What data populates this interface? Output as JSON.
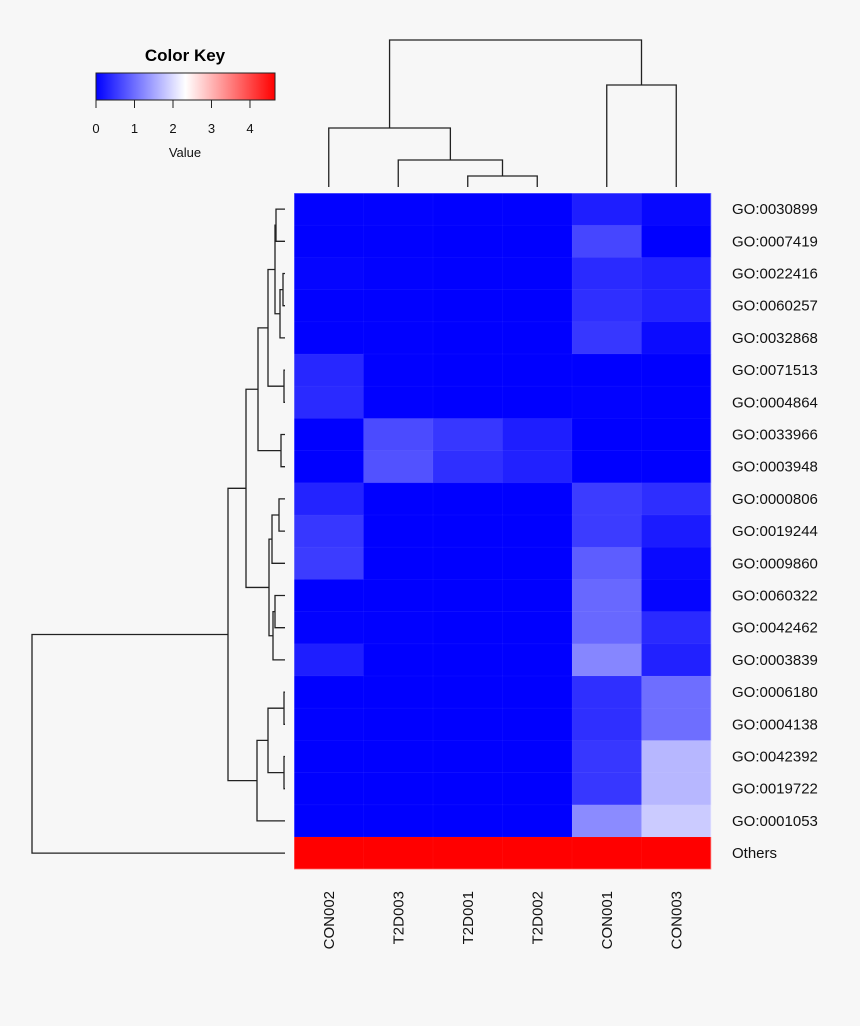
{
  "chart_data": {
    "type": "heatmap",
    "columns": [
      "CON002",
      "T2D003",
      "T2D001",
      "T2D002",
      "CON001",
      "CON003"
    ],
    "rows": [
      "GO:0030899",
      "GO:0007419",
      "GO:0022416",
      "GO:0060257",
      "GO:0032868",
      "GO:0071513",
      "GO:0004864",
      "GO:0033966",
      "GO:0003948",
      "GO:0000806",
      "GO:0019244",
      "GO:0009860",
      "GO:0060322",
      "GO:0042462",
      "GO:0003839",
      "GO:0006180",
      "GO:0004138",
      "GO:0042392",
      "GO:0019722",
      "GO:0001053",
      "Others"
    ],
    "values": [
      [
        0.02,
        0.02,
        0.01,
        0.01,
        0.27,
        0.06
      ],
      [
        0.01,
        0.01,
        0.0,
        0.0,
        0.64,
        0.0
      ],
      [
        0.05,
        0.02,
        0.01,
        0.01,
        0.38,
        0.3
      ],
      [
        0.01,
        0.01,
        0.0,
        0.0,
        0.43,
        0.32
      ],
      [
        0.01,
        0.01,
        0.0,
        0.0,
        0.5,
        0.1
      ],
      [
        0.36,
        0.01,
        0.0,
        0.0,
        0.0,
        0.0
      ],
      [
        0.38,
        0.01,
        0.0,
        0.0,
        0.02,
        0.01
      ],
      [
        0.0,
        0.68,
        0.5,
        0.27,
        0.0,
        0.0
      ],
      [
        0.0,
        0.75,
        0.43,
        0.3,
        0.0,
        0.0
      ],
      [
        0.32,
        0.0,
        0.0,
        0.0,
        0.55,
        0.42
      ],
      [
        0.5,
        0.0,
        0.0,
        0.0,
        0.55,
        0.25
      ],
      [
        0.55,
        0.0,
        0.0,
        0.0,
        0.85,
        0.08
      ],
      [
        0.0,
        0.0,
        0.0,
        0.0,
        0.95,
        0.05
      ],
      [
        0.02,
        0.01,
        0.0,
        0.0,
        0.95,
        0.38
      ],
      [
        0.27,
        0.0,
        0.0,
        0.0,
        1.22,
        0.3
      ],
      [
        0.0,
        0.0,
        0.0,
        0.0,
        0.43,
        1.0
      ],
      [
        0.01,
        0.0,
        0.0,
        0.0,
        0.43,
        1.0
      ],
      [
        0.0,
        0.0,
        0.0,
        0.0,
        0.5,
        1.67
      ],
      [
        0.0,
        0.0,
        0.0,
        0.0,
        0.5,
        1.67
      ],
      [
        0.0,
        0.0,
        0.0,
        0.0,
        1.27,
        1.85
      ],
      [
        4.65,
        4.65,
        4.65,
        4.65,
        4.65,
        4.65
      ]
    ],
    "color_key": {
      "title": "Color Key",
      "xlabel": "Value",
      "ticks": [
        0,
        1,
        2,
        3,
        4
      ],
      "range": [
        0,
        4.65
      ],
      "colors": {
        "low": "#0000ff",
        "mid": "#ffffff",
        "high": "#ff0000"
      }
    },
    "row_dendrogram": true,
    "column_dendrogram": true
  }
}
